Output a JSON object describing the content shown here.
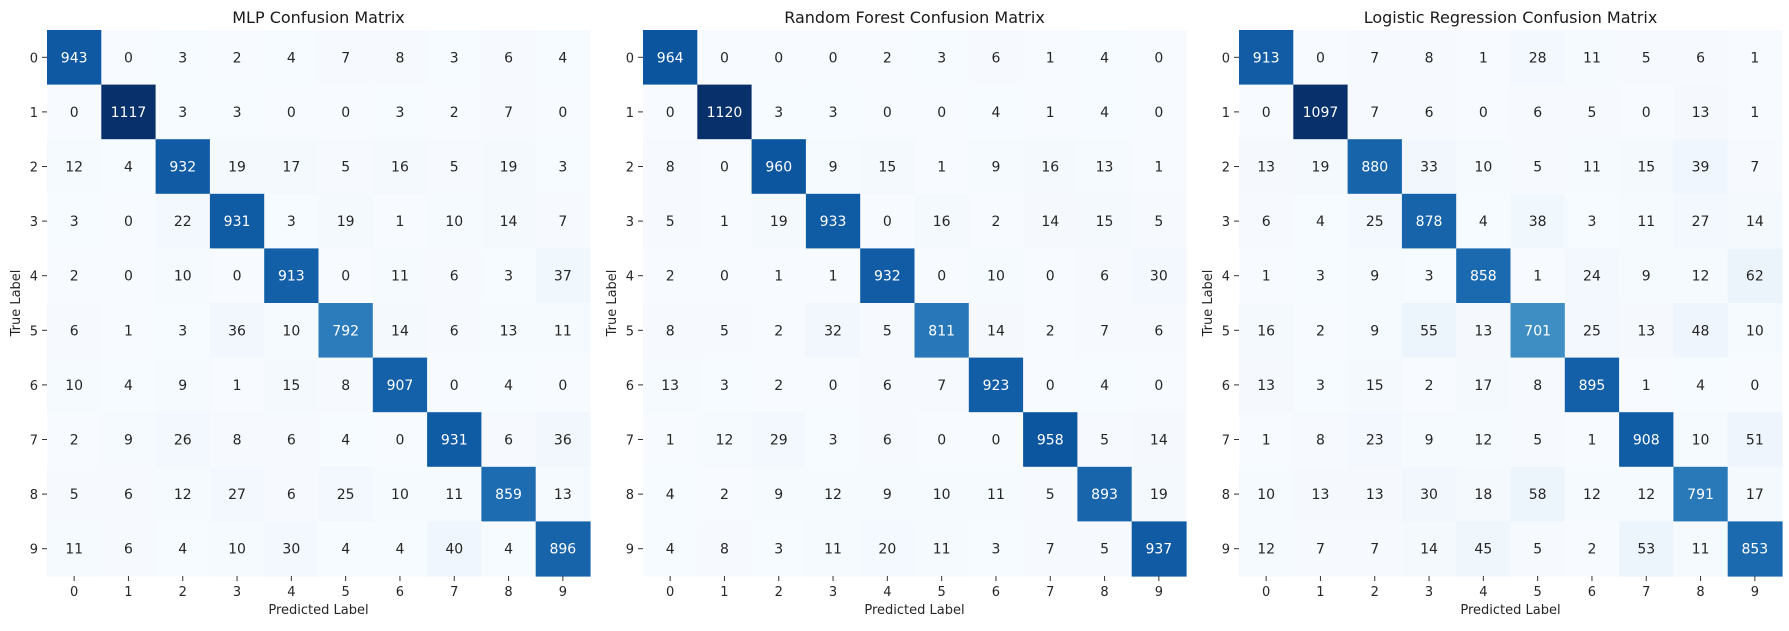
{
  "chart_data": [
    {
      "type": "heatmap",
      "title": "MLP Confusion Matrix",
      "xlabel": "Predicted Label",
      "ylabel": "True Label",
      "x_ticks": [
        "0",
        "1",
        "2",
        "3",
        "4",
        "5",
        "6",
        "7",
        "8",
        "9"
      ],
      "y_ticks": [
        "0",
        "1",
        "2",
        "3",
        "4",
        "5",
        "6",
        "7",
        "8",
        "9"
      ],
      "colormap": "Blues",
      "colorbar": false,
      "values": [
        [
          943,
          0,
          3,
          2,
          4,
          7,
          8,
          3,
          6,
          4
        ],
        [
          0,
          1117,
          3,
          3,
          0,
          0,
          3,
          2,
          7,
          0
        ],
        [
          12,
          4,
          932,
          19,
          17,
          5,
          16,
          5,
          19,
          3
        ],
        [
          3,
          0,
          22,
          931,
          3,
          19,
          1,
          10,
          14,
          7
        ],
        [
          2,
          0,
          10,
          0,
          913,
          0,
          11,
          6,
          3,
          37
        ],
        [
          6,
          1,
          3,
          36,
          10,
          792,
          14,
          6,
          13,
          11
        ],
        [
          10,
          4,
          9,
          1,
          15,
          8,
          907,
          0,
          4,
          0
        ],
        [
          2,
          9,
          26,
          8,
          6,
          4,
          0,
          931,
          6,
          36
        ],
        [
          5,
          6,
          12,
          27,
          6,
          25,
          10,
          11,
          859,
          13
        ],
        [
          11,
          6,
          4,
          10,
          30,
          4,
          4,
          40,
          4,
          896
        ]
      ]
    },
    {
      "type": "heatmap",
      "title": "Random Forest Confusion Matrix",
      "xlabel": "Predicted Label",
      "ylabel": "True Label",
      "x_ticks": [
        "0",
        "1",
        "2",
        "3",
        "4",
        "5",
        "6",
        "7",
        "8",
        "9"
      ],
      "y_ticks": [
        "0",
        "1",
        "2",
        "3",
        "4",
        "5",
        "6",
        "7",
        "8",
        "9"
      ],
      "colormap": "Blues",
      "colorbar": false,
      "values": [
        [
          964,
          0,
          0,
          0,
          2,
          3,
          6,
          1,
          4,
          0
        ],
        [
          0,
          1120,
          3,
          3,
          0,
          0,
          4,
          1,
          4,
          0
        ],
        [
          8,
          0,
          960,
          9,
          15,
          1,
          9,
          16,
          13,
          1
        ],
        [
          5,
          1,
          19,
          933,
          0,
          16,
          2,
          14,
          15,
          5
        ],
        [
          2,
          0,
          1,
          1,
          932,
          0,
          10,
          0,
          6,
          30
        ],
        [
          8,
          5,
          2,
          32,
          5,
          811,
          14,
          2,
          7,
          6
        ],
        [
          13,
          3,
          2,
          0,
          6,
          7,
          923,
          0,
          4,
          0
        ],
        [
          1,
          12,
          29,
          3,
          6,
          0,
          0,
          958,
          5,
          14
        ],
        [
          4,
          2,
          9,
          12,
          9,
          10,
          11,
          5,
          893,
          19
        ],
        [
          4,
          8,
          3,
          11,
          20,
          11,
          3,
          7,
          5,
          937
        ]
      ]
    },
    {
      "type": "heatmap",
      "title": "Logistic Regression Confusion Matrix",
      "xlabel": "Predicted Label",
      "ylabel": "True Label",
      "x_ticks": [
        "0",
        "1",
        "2",
        "3",
        "4",
        "5",
        "6",
        "7",
        "8",
        "9"
      ],
      "y_ticks": [
        "0",
        "1",
        "2",
        "3",
        "4",
        "5",
        "6",
        "7",
        "8",
        "9"
      ],
      "colormap": "Blues",
      "colorbar": false,
      "values": [
        [
          913,
          0,
          7,
          8,
          1,
          28,
          11,
          5,
          6,
          1
        ],
        [
          0,
          1097,
          7,
          6,
          0,
          6,
          5,
          0,
          13,
          1
        ],
        [
          13,
          19,
          880,
          33,
          10,
          5,
          11,
          15,
          39,
          7
        ],
        [
          6,
          4,
          25,
          878,
          4,
          38,
          3,
          11,
          27,
          14
        ],
        [
          1,
          3,
          9,
          3,
          858,
          1,
          24,
          9,
          12,
          62
        ],
        [
          16,
          2,
          9,
          55,
          13,
          701,
          25,
          13,
          48,
          10
        ],
        [
          13,
          3,
          15,
          2,
          17,
          8,
          895,
          1,
          4,
          0
        ],
        [
          1,
          8,
          23,
          9,
          12,
          5,
          1,
          908,
          10,
          51
        ],
        [
          10,
          13,
          13,
          30,
          18,
          58,
          12,
          12,
          791,
          17
        ],
        [
          12,
          7,
          7,
          14,
          45,
          5,
          2,
          53,
          11,
          853
        ]
      ]
    }
  ]
}
